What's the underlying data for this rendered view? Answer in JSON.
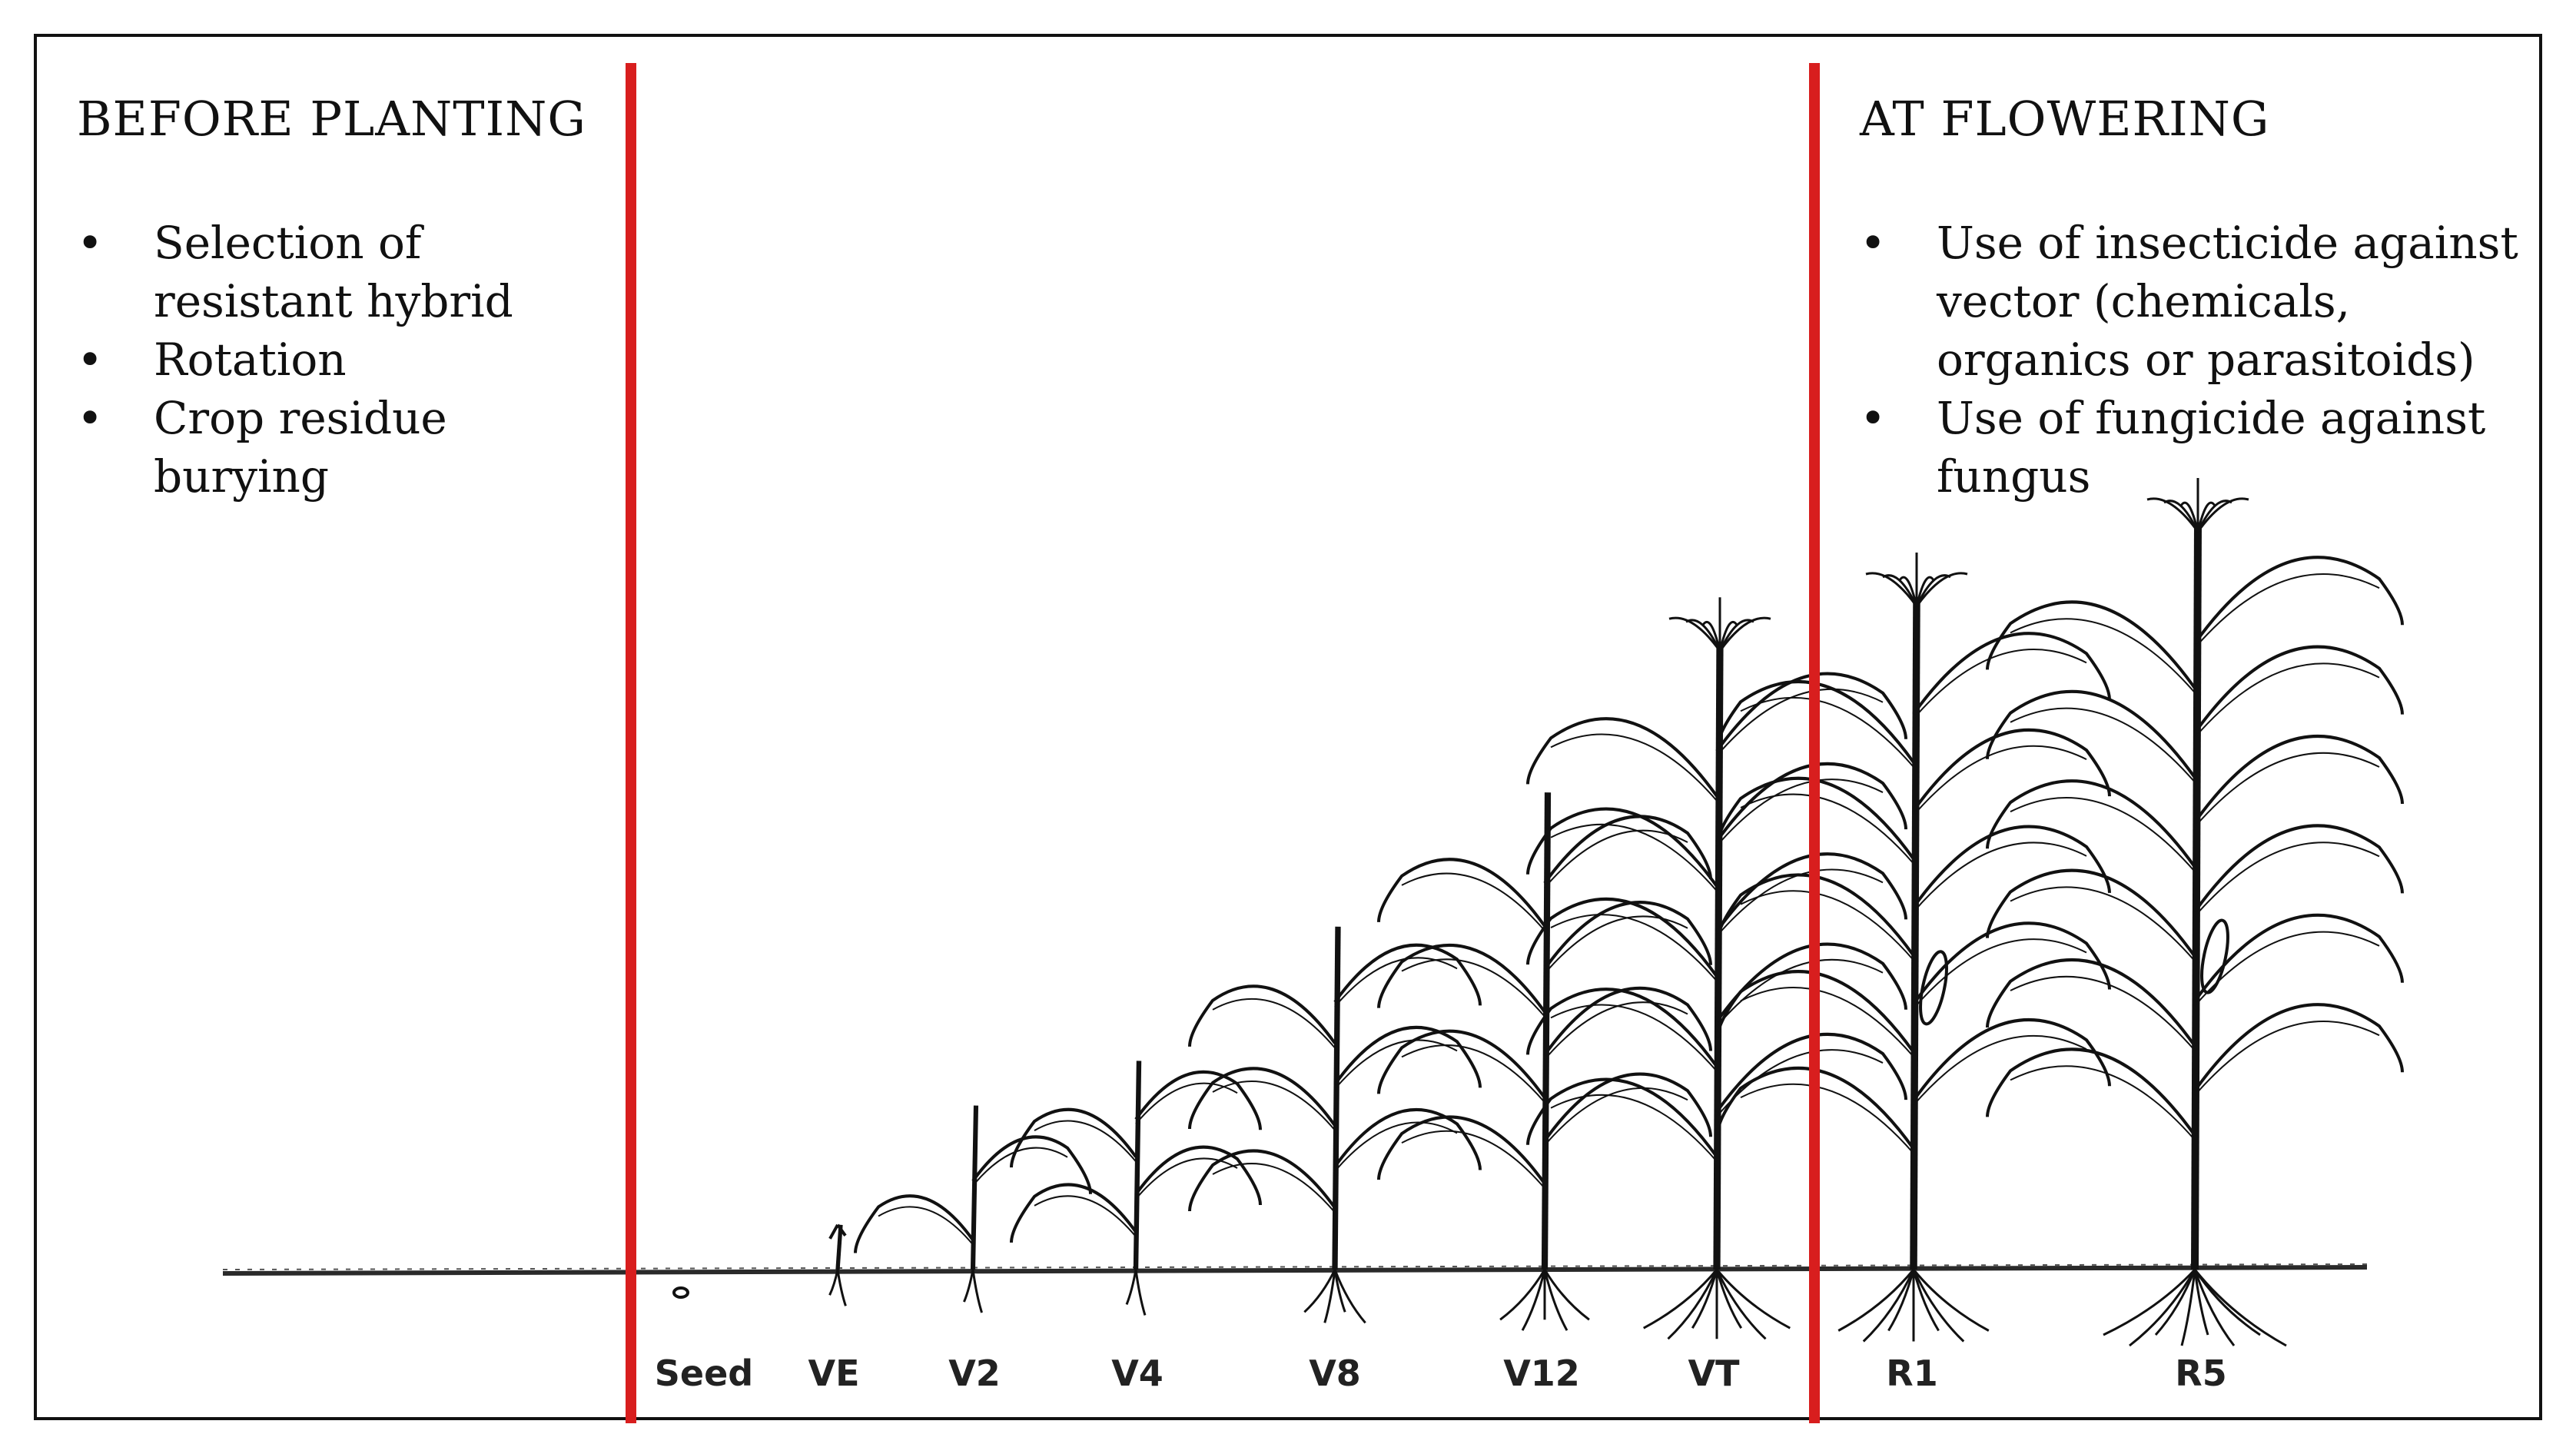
{
  "colors": {
    "divider": "#d81e1e",
    "ink": "#111111",
    "ground": "#2a2a2a"
  },
  "before": {
    "title": "BEFORE PLANTING",
    "items": [
      {
        "bullet": "•",
        "text": "Selection of\nresistant hybrid"
      },
      {
        "bullet": "•",
        "text": "Rotation"
      },
      {
        "bullet": "•",
        "text": "Crop residue\nburying"
      }
    ]
  },
  "flowering": {
    "title": "AT FLOWERING",
    "items": [
      {
        "bullet": "•",
        "text": "Use of insecticide against\nvector (chemicals,\norganics or parasitoids)"
      },
      {
        "bullet": "•",
        "text": "Use of fungicide against\nfungus"
      }
    ]
  },
  "stages": [
    {
      "id": "seed",
      "label": "Seed",
      "height": 0.0,
      "leaves": 0,
      "tassel": false,
      "ear": false
    },
    {
      "id": "ve",
      "label": "VE",
      "height": 0.06,
      "leaves": 0,
      "tassel": false,
      "ear": false
    },
    {
      "id": "v2",
      "label": "V2",
      "height": 0.22,
      "leaves": 2,
      "tassel": false,
      "ear": false
    },
    {
      "id": "v4",
      "label": "V4",
      "height": 0.28,
      "leaves": 4,
      "tassel": false,
      "ear": false
    },
    {
      "id": "v8",
      "label": "V8",
      "height": 0.46,
      "leaves": 6,
      "tassel": false,
      "ear": false
    },
    {
      "id": "v12",
      "label": "V12",
      "height": 0.64,
      "leaves": 8,
      "tassel": false,
      "ear": false
    },
    {
      "id": "vt",
      "label": "VT",
      "height": 0.84,
      "leaves": 10,
      "tassel": true,
      "ear": false
    },
    {
      "id": "r1",
      "label": "R1",
      "height": 0.9,
      "leaves": 10,
      "tassel": true,
      "ear": true
    },
    {
      "id": "r5",
      "label": "R5",
      "height": 1.0,
      "leaves": 12,
      "tassel": true,
      "ear": true
    }
  ]
}
